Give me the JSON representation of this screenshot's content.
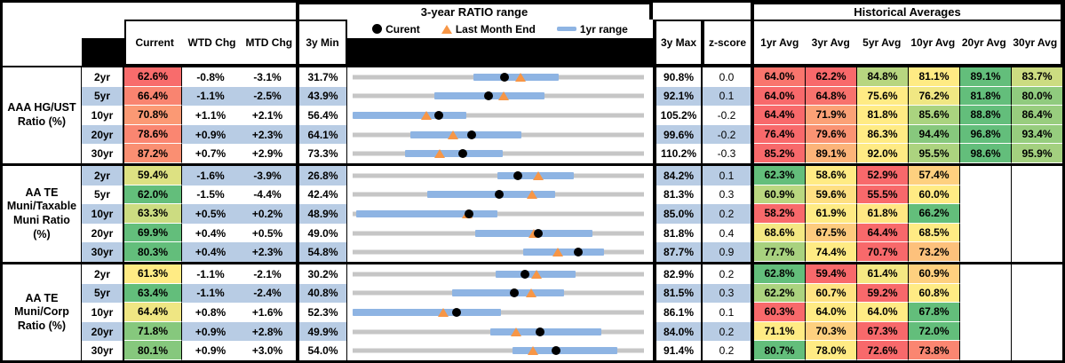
{
  "titles": {
    "range_section": "3-year RATIO range",
    "hist_section": "Historical Averages"
  },
  "legend": {
    "current_label": "Curent",
    "last_month_label": "Last Month End",
    "range_label": "1yr range"
  },
  "columns": {
    "stats": [
      "Current",
      "WTD Chg",
      "MTD Chg"
    ],
    "range_min": "3y Min",
    "range_max": "3y Max",
    "z_score": "z-score",
    "averages": [
      "1yr Avg",
      "3yr Avg",
      "5yr Avg",
      "10yr Avg",
      "20yr Avg",
      "30yr Avg"
    ]
  },
  "colors": {
    "row_band": "#B8CCE4",
    "heat_low": "#F8696B",
    "heat_mid": "#FFEB84",
    "heat_high": "#63BE7B",
    "range_track": "#C6C6C6",
    "range_bar": "#8EB4E3",
    "marker_dot": "#000000",
    "marker_triangle": "#F79646"
  },
  "chart_data": {
    "type": "table",
    "description": "Municipal bond ratio monitor: current ratios, weekly/monthly changes, 3-year range dot plot (black dot = current, orange triangle = last month end, blue bar = 1yr range, values mapped between 3y Min and 3y Max), z-scores and historical averages with red-yellow-green heat scale per row",
    "groups": [
      {
        "name": "AAA HG/UST\nRatio (%)",
        "rows": [
          {
            "tenor": "2yr",
            "current": 62.6,
            "wtd": "-0.8%",
            "mtd": "-3.1%",
            "min": 31.7,
            "max": 90.8,
            "band1yr": [
              56.2,
              73.5
            ],
            "lme": 65.7,
            "z": "0.0",
            "avgs": [
              64.0,
              62.2,
              84.8,
              81.1,
              89.1,
              83.7
            ]
          },
          {
            "tenor": "5yr",
            "current": 66.4,
            "wtd": "-1.1%",
            "mtd": "-2.5%",
            "min": 43.9,
            "max": 92.1,
            "band1yr": [
              57.4,
              75.6
            ],
            "lme": 68.9,
            "z": "0.1",
            "avgs": [
              64.0,
              64.8,
              75.6,
              76.2,
              81.8,
              80.0
            ]
          },
          {
            "tenor": "10yr",
            "current": 70.8,
            "wtd": "+1.1%",
            "mtd": "+2.1%",
            "min": 56.4,
            "max": 105.2,
            "band1yr": [
              56.4,
              75.5
            ],
            "lme": 68.7,
            "z": "-0.2",
            "avgs": [
              64.4,
              71.9,
              81.8,
              85.6,
              88.8,
              86.4
            ]
          },
          {
            "tenor": "20yr",
            "current": 78.6,
            "wtd": "+0.9%",
            "mtd": "+2.3%",
            "min": 64.1,
            "max": 99.6,
            "band1yr": [
              71.1,
              84.7
            ],
            "lme": 76.3,
            "z": "-0.2",
            "avgs": [
              76.4,
              79.6,
              86.3,
              94.4,
              96.8,
              93.4
            ]
          },
          {
            "tenor": "30yr",
            "current": 87.2,
            "wtd": "+0.7%",
            "mtd": "+2.9%",
            "min": 73.3,
            "max": 110.2,
            "band1yr": [
              79.9,
              92.3
            ],
            "lme": 84.3,
            "z": "-0.3",
            "avgs": [
              85.2,
              89.1,
              92.0,
              95.5,
              98.6,
              95.9
            ]
          }
        ]
      },
      {
        "name": "AA TE\nMuni/Taxable\nMuni Ratio\n(%)",
        "rows": [
          {
            "tenor": "2yr",
            "current": 59.4,
            "wtd": "-1.6%",
            "mtd": "-3.9%",
            "min": 26.8,
            "max": 84.2,
            "band1yr": [
              55.3,
              70.4
            ],
            "lme": 63.3,
            "z": "0.1",
            "avgs": [
              62.3,
              58.6,
              52.9,
              57.4
            ]
          },
          {
            "tenor": "5yr",
            "current": 62.0,
            "wtd": "-1.5%",
            "mtd": "-4.4%",
            "min": 42.4,
            "max": 81.3,
            "band1yr": [
              52.4,
              69.5
            ],
            "lme": 66.4,
            "z": "0.3",
            "avgs": [
              60.9,
              59.6,
              55.5,
              60.0
            ]
          },
          {
            "tenor": "10yr",
            "current": 63.3,
            "wtd": "+0.5%",
            "mtd": "+0.2%",
            "min": 48.9,
            "max": 85.0,
            "band1yr": [
              49.3,
              66.8
            ],
            "lme": 63.1,
            "z": "0.2",
            "avgs": [
              58.2,
              61.9,
              61.8,
              66.2
            ]
          },
          {
            "tenor": "20yr",
            "current": 69.9,
            "wtd": "+0.4%",
            "mtd": "+0.5%",
            "min": 49.0,
            "max": 81.8,
            "band1yr": [
              62.8,
              76.0
            ],
            "lme": 69.4,
            "z": "0.4",
            "avgs": [
              68.6,
              67.5,
              64.4,
              68.5
            ]
          },
          {
            "tenor": "30yr",
            "current": 80.3,
            "wtd": "+0.4%",
            "mtd": "+2.3%",
            "min": 54.8,
            "max": 87.7,
            "band1yr": [
              74.1,
              83.2
            ],
            "lme": 78.0,
            "z": "0.9",
            "avgs": [
              77.7,
              74.4,
              70.7,
              73.2
            ]
          }
        ]
      },
      {
        "name": "AA TE\nMuni/Corp\nRatio (%)",
        "rows": [
          {
            "tenor": "2yr",
            "current": 61.3,
            "wtd": "-1.1%",
            "mtd": "-2.1%",
            "min": 30.2,
            "max": 82.9,
            "band1yr": [
              56.1,
              70.5
            ],
            "lme": 63.4,
            "z": "0.2",
            "avgs": [
              62.8,
              59.4,
              61.4,
              60.9
            ]
          },
          {
            "tenor": "5yr",
            "current": 63.4,
            "wtd": "-1.1%",
            "mtd": "-2.4%",
            "min": 40.8,
            "max": 81.5,
            "band1yr": [
              54.7,
              70.3
            ],
            "lme": 65.8,
            "z": "0.3",
            "avgs": [
              62.2,
              60.7,
              59.2,
              60.8
            ]
          },
          {
            "tenor": "10yr",
            "current": 64.4,
            "wtd": "+0.8%",
            "mtd": "+1.6%",
            "min": 52.3,
            "max": 86.1,
            "band1yr": [
              52.3,
              69.5
            ],
            "lme": 62.8,
            "z": "0.1",
            "avgs": [
              60.3,
              64.0,
              64.0,
              67.8
            ]
          },
          {
            "tenor": "20yr",
            "current": 71.8,
            "wtd": "+0.9%",
            "mtd": "+2.8%",
            "min": 49.9,
            "max": 84.0,
            "band1yr": [
              66.0,
              79.0
            ],
            "lme": 69.0,
            "z": "0.2",
            "avgs": [
              71.1,
              70.3,
              67.3,
              72.0
            ]
          },
          {
            "tenor": "30yr",
            "current": 80.1,
            "wtd": "+0.9%",
            "mtd": "+3.0%",
            "min": 54.0,
            "max": 91.4,
            "band1yr": [
              74.5,
              88.0
            ],
            "lme": 77.1,
            "z": "0.2",
            "avgs": [
              80.7,
              78.0,
              72.6,
              73.8
            ]
          }
        ]
      }
    ]
  }
}
